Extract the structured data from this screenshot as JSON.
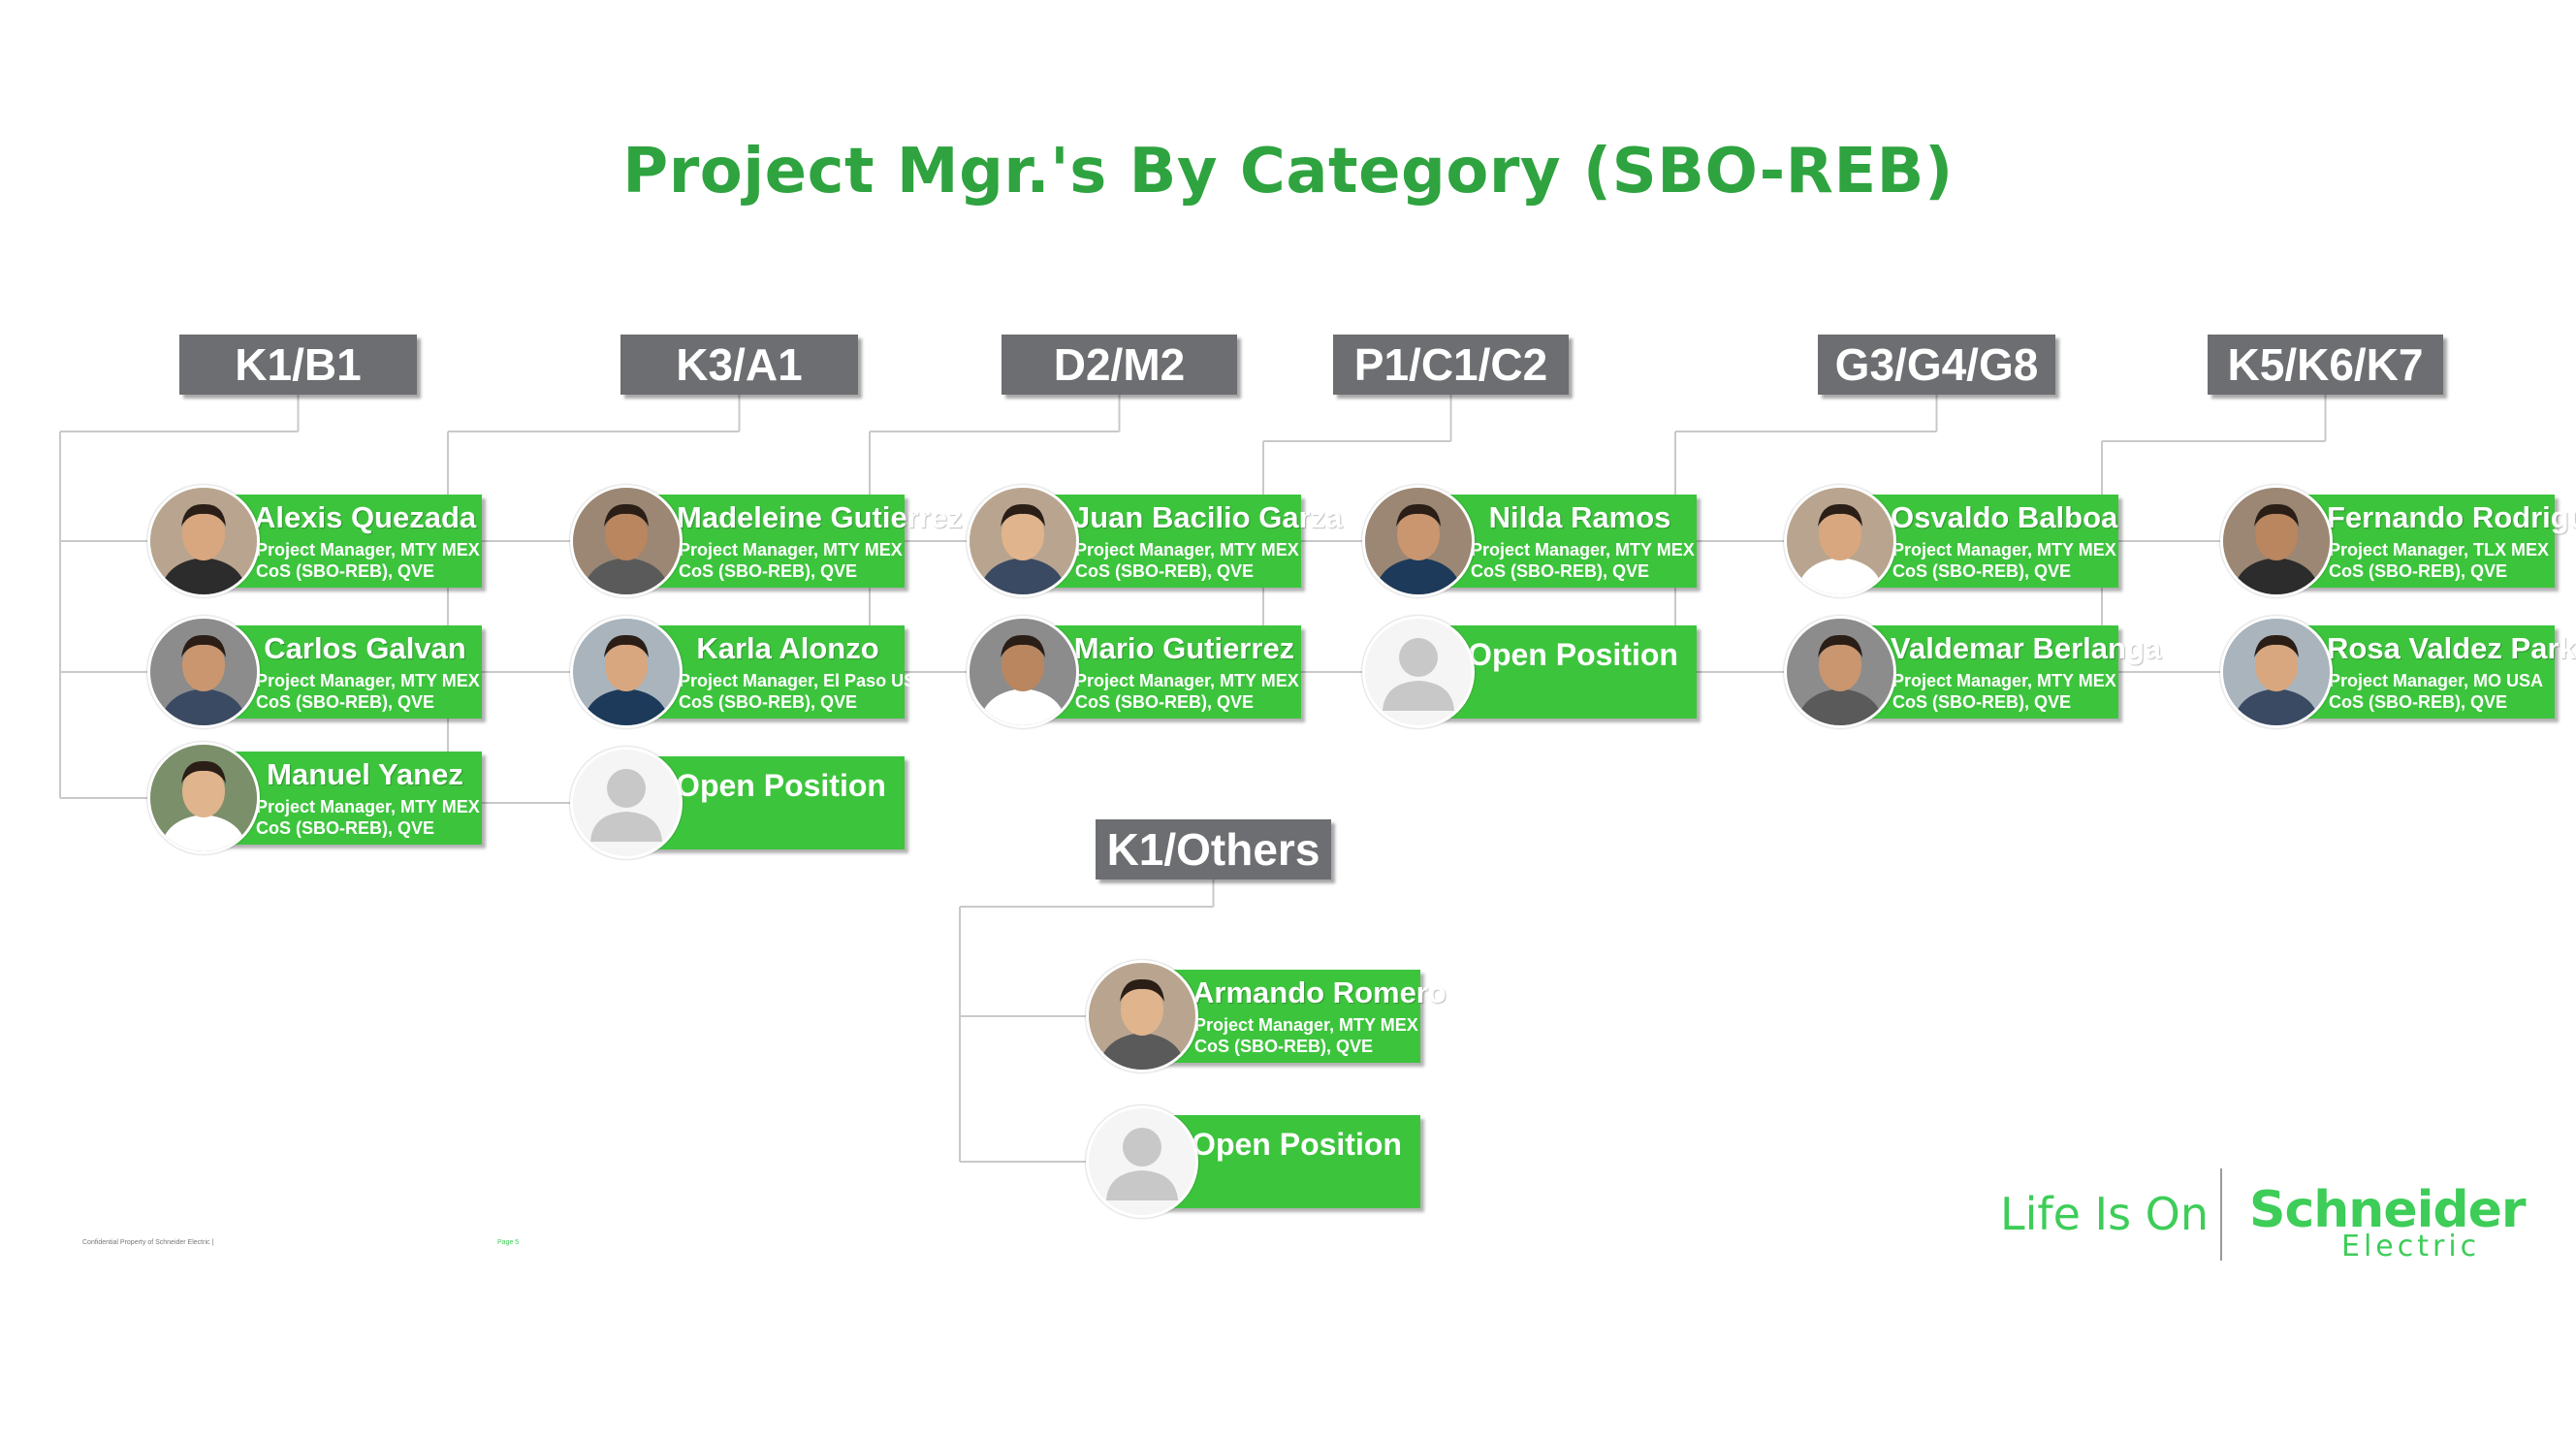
{
  "title": "Project Mgr.'s By Category (SBO-REB)",
  "colors": {
    "title": "#2ea33f",
    "card": "#3dc43d",
    "category": "#6d6e71",
    "brand": "#3dcd58"
  },
  "categories": [
    {
      "label": "K1/B1",
      "members": [
        {
          "name": "Alexis Quezada",
          "role": "Project Manager, MTY MEX",
          "unit": "CoS (SBO-REB), QVE"
        },
        {
          "name": "Carlos Galvan",
          "role": "Project Manager, MTY MEX",
          "unit": "CoS (SBO-REB), QVE"
        },
        {
          "name": "Manuel Yanez",
          "role": "Project Manager, MTY MEX",
          "unit": "CoS (SBO-REB), QVE"
        }
      ]
    },
    {
      "label": "K3/A1",
      "members": [
        {
          "name": "Madeleine Gutierrez",
          "role": "Project Manager, MTY MEX",
          "unit": "CoS (SBO-REB), QVE"
        },
        {
          "name": "Karla Alonzo",
          "role": "Project Manager, El Paso USA",
          "unit": "CoS (SBO-REB), QVE"
        },
        {
          "name": "Open Position"
        }
      ]
    },
    {
      "label": "D2/M2",
      "members": [
        {
          "name": "Juan Bacilio Garza",
          "role": "Project Manager, MTY MEX",
          "unit": "CoS (SBO-REB), QVE"
        },
        {
          "name": "Mario Gutierrez",
          "role": "Project Manager, MTY MEX",
          "unit": "CoS (SBO-REB), QVE"
        }
      ]
    },
    {
      "label": "P1/C1/C2",
      "members": [
        {
          "name": "Nilda Ramos",
          "role": "Project Manager, MTY MEX",
          "unit": "CoS (SBO-REB), QVE"
        },
        {
          "name": "Open Position"
        }
      ]
    },
    {
      "label": "G3/G4/G8",
      "members": [
        {
          "name": "Osvaldo Balboa",
          "role": "Project Manager, MTY MEX",
          "unit": "CoS (SBO-REB), QVE"
        },
        {
          "name": "Valdemar Berlanga",
          "role": "Project Manager, MTY MEX",
          "unit": "CoS (SBO-REB), QVE"
        }
      ]
    },
    {
      "label": "K5/K6/K7",
      "members": [
        {
          "name": "Fernando Rodriguez",
          "role": "Project Manager, TLX MEX",
          "unit": "CoS (SBO-REB), QVE"
        },
        {
          "name": "Rosa Valdez Parks",
          "role": "Project Manager, MO USA",
          "unit": "CoS (SBO-REB), QVE"
        }
      ]
    },
    {
      "label": "K1/Others",
      "members": [
        {
          "name": "Armando Romero",
          "role": "Project Manager, MTY MEX",
          "unit": "CoS (SBO-REB), QVE"
        },
        {
          "name": "Open Position"
        }
      ]
    }
  ],
  "footer": {
    "left": "Confidential Property of Schneider Electric |",
    "page": "Page 5"
  },
  "brand": {
    "tagline": "Life Is On",
    "name": "Schneider",
    "sub": "Electric"
  }
}
